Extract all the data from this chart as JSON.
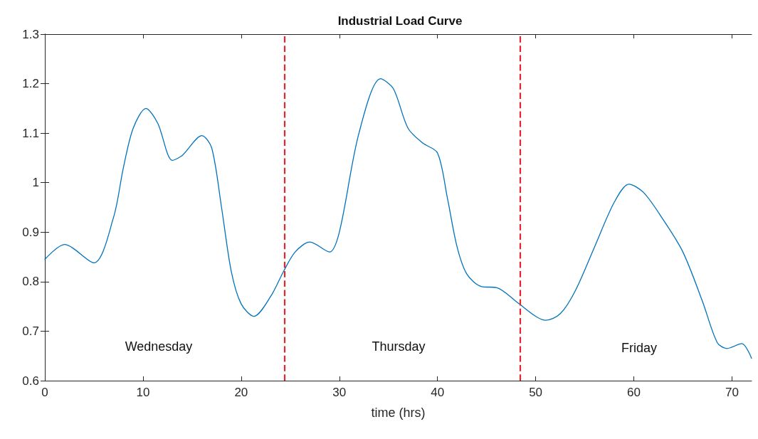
{
  "chart_data": {
    "type": "line",
    "title": "Industrial Load Curve",
    "xlabel": "time (hrs)",
    "xlim": [
      0,
      72
    ],
    "xticks": [
      0,
      10,
      20,
      30,
      40,
      50,
      60,
      70
    ],
    "ylim": [
      0.6,
      1.3
    ],
    "yticks": [
      0.6,
      0.7,
      0.8,
      0.9,
      1,
      1.1,
      1.2,
      1.3
    ],
    "grid": false,
    "marker": "none",
    "line_style": "solid",
    "series": [
      {
        "color": "#0072bd",
        "x": [
          0,
          2,
          5,
          7,
          8,
          9,
          10.3,
          11.5,
          13,
          14,
          16,
          17,
          18,
          19,
          20,
          21.3,
          23,
          24.3,
          25.5,
          27,
          29,
          30,
          32,
          34.2,
          35.5,
          37,
          38.5,
          40,
          41,
          42,
          43,
          44.5,
          46,
          48.2,
          50,
          51,
          52.5,
          54,
          56,
          58,
          59.5,
          61,
          63,
          65,
          67,
          68.5,
          69.5,
          71,
          72
        ],
        "values": [
          0.845,
          0.875,
          0.838,
          0.93,
          1.03,
          1.11,
          1.15,
          1.12,
          1.045,
          1.055,
          1.095,
          1.07,
          0.95,
          0.82,
          0.755,
          0.73,
          0.77,
          0.82,
          0.86,
          0.88,
          0.86,
          0.9,
          1.1,
          1.21,
          1.19,
          1.11,
          1.08,
          1.06,
          0.97,
          0.87,
          0.815,
          0.79,
          0.788,
          0.757,
          0.73,
          0.722,
          0.735,
          0.78,
          0.87,
          0.96,
          0.997,
          0.98,
          0.925,
          0.86,
          0.76,
          0.677,
          0.665,
          0.675,
          0.645
        ]
      }
    ],
    "ref_lines": [
      {
        "axis": "x",
        "value": 24.4,
        "color": "#e3262d",
        "line_style": "dashed"
      },
      {
        "axis": "x",
        "value": 48.4,
        "color": "#e3262d",
        "line_style": "dashed"
      }
    ],
    "annotations": [
      "Wednesday",
      "Thursday",
      "Friday"
    ]
  }
}
